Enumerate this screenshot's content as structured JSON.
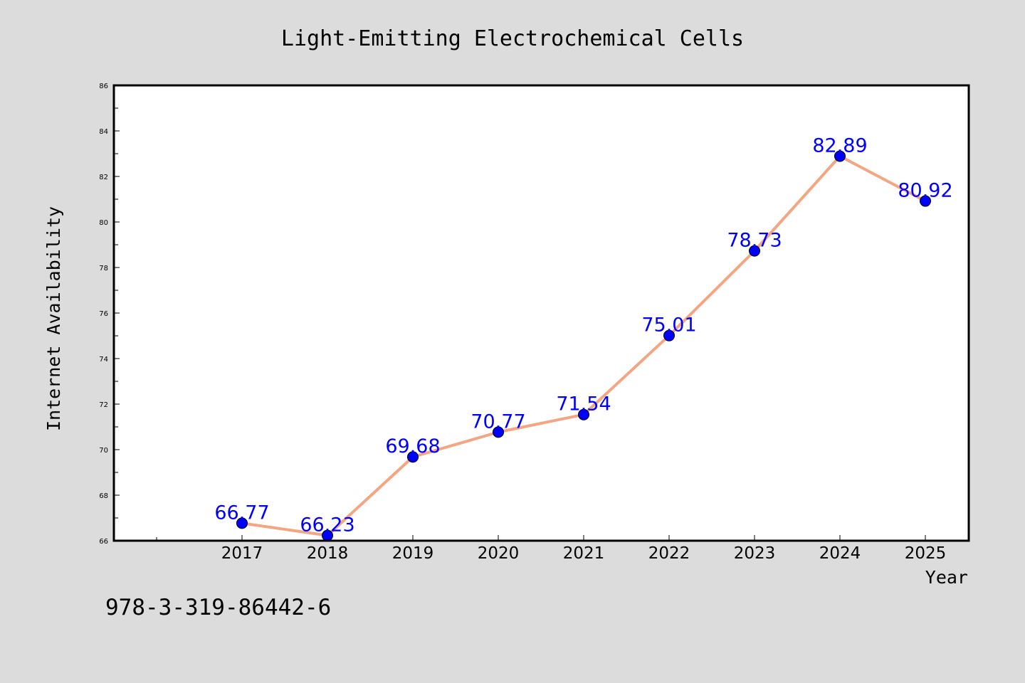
{
  "chart_data": {
    "type": "line",
    "title": "Light-Emitting Electrochemical Cells",
    "xlabel": "Year",
    "ylabel": "Internet Availability",
    "categories": [
      "2017",
      "2018",
      "2019",
      "2020",
      "2021",
      "2022",
      "2023",
      "2024",
      "2025"
    ],
    "series": [
      {
        "values": [
          66.77,
          66.23,
          69.68,
          70.77,
          71.54,
          75.01,
          78.73,
          82.89,
          80.92
        ],
        "data_labels": [
          "66.77",
          "66.23",
          "69.68",
          "70.77",
          "71.54",
          "75.01",
          "78.73",
          "82.89",
          "80.92"
        ],
        "line_color": "#f4a582",
        "marker_color": "#0000ff"
      }
    ],
    "ylim": [
      66,
      86
    ],
    "yticks": [
      "66",
      "68",
      "70",
      "72",
      "74",
      "76",
      "78",
      "80",
      "82",
      "84",
      "86"
    ],
    "grid": false,
    "legend": "none"
  },
  "footer": {
    "text": "978-3-319-86442-6"
  },
  "colors": {
    "background": "#dcdcdc",
    "plot_background": "#ffffff",
    "line": "#f4a582",
    "marker": "#0000ff",
    "data_label": "#0000ff"
  }
}
